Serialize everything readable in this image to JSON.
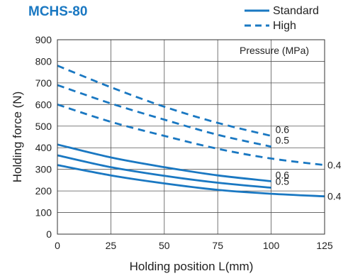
{
  "colors": {
    "accent": "#1a78c2",
    "grid": "#555555",
    "frame": "#333333"
  },
  "chart_data": {
    "type": "line",
    "title": "MCHS-80",
    "xlabel": "Holding position L(mm)",
    "ylabel": "Holding force (N)",
    "xlim": [
      0,
      125
    ],
    "ylim": [
      0,
      900
    ],
    "xticks": [
      "0",
      "25",
      "50",
      "75",
      "100",
      "125"
    ],
    "yticks": [
      "0",
      "100",
      "200",
      "300",
      "400",
      "500",
      "600",
      "700",
      "800",
      "900"
    ],
    "grid": true,
    "legend": {
      "placement": "top-right",
      "entries": [
        {
          "label": "Standard",
          "style": "solid"
        },
        {
          "label": "High",
          "style": "dashed"
        }
      ]
    },
    "annotation": "Pressure (MPa)",
    "series": [
      {
        "label": "0.6",
        "style": "dashed",
        "x": [
          0,
          25,
          50,
          75,
          100
        ],
        "y": [
          780,
          680,
          590,
          515,
          455
        ]
      },
      {
        "label": "0.5",
        "style": "dashed",
        "x": [
          0,
          25,
          50,
          75,
          100
        ],
        "y": [
          690,
          605,
          530,
          460,
          405
        ]
      },
      {
        "label": "0.4",
        "style": "dashed",
        "x": [
          0,
          25,
          50,
          75,
          100,
          125
        ],
        "y": [
          600,
          520,
          455,
          395,
          350,
          320
        ]
      },
      {
        "label": "0.6",
        "style": "solid",
        "x": [
          0,
          25,
          50,
          75,
          100
        ],
        "y": [
          415,
          355,
          310,
          272,
          245
        ]
      },
      {
        "label": "0.5",
        "style": "solid",
        "x": [
          0,
          25,
          50,
          75,
          100
        ],
        "y": [
          365,
          310,
          270,
          238,
          215
        ]
      },
      {
        "label": "0.4",
        "style": "solid",
        "x": [
          0,
          25,
          50,
          75,
          100,
          125
        ],
        "y": [
          320,
          272,
          235,
          205,
          187,
          175
        ]
      }
    ]
  }
}
